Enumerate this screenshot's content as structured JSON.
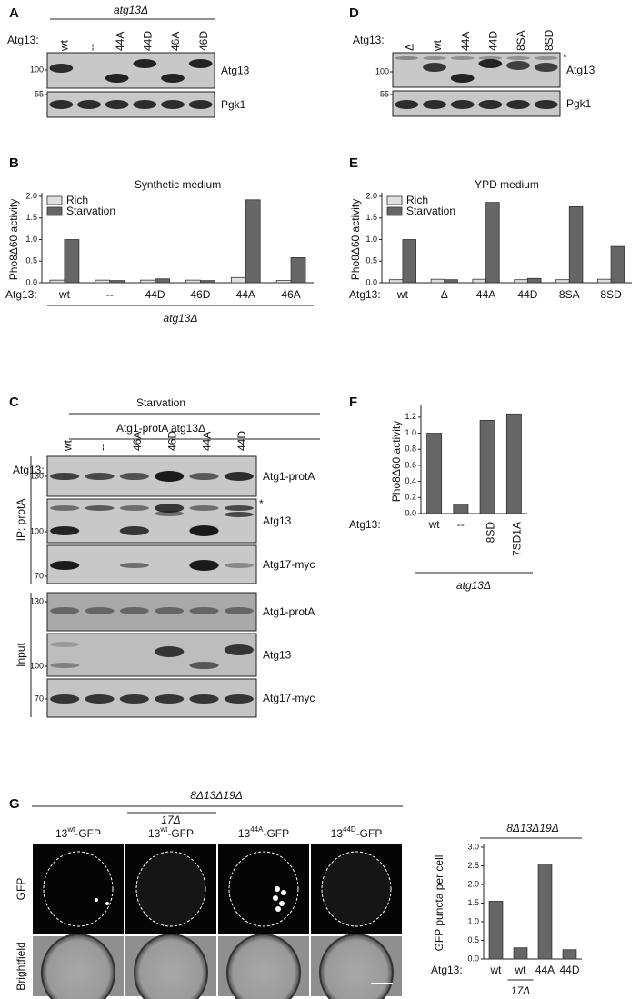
{
  "blot_panels": [
    {
      "label": "A",
      "header": "atg13Δ",
      "row_label": "Atg13:",
      "lanes": [
        "wt",
        "--",
        "44A",
        "44D",
        "46A",
        "46D"
      ],
      "blots": [
        {
          "name": "Atg13",
          "marker": "100"
        },
        {
          "name": "Pgk1",
          "marker": "55"
        }
      ]
    },
    {
      "label": "D",
      "row_label": "Atg13:",
      "lanes": [
        "Δ",
        "wt",
        "44A",
        "44D",
        "8SA",
        "8SD"
      ],
      "blots": [
        {
          "name": "Atg13",
          "marker": "100",
          "asterisk": "*"
        },
        {
          "name": "Pgk1",
          "marker": "55"
        }
      ]
    },
    {
      "label": "C",
      "header": "Starvation",
      "subheader": "Atg1-protA atg13Δ",
      "row_label": "Atg13:",
      "lanes": [
        "wt",
        "--",
        "46A",
        "46D",
        "44A",
        "44D"
      ],
      "groups": [
        {
          "name": "IP: protA",
          "blots": [
            {
              "name": "Atg1-protA",
              "marker": "130"
            },
            {
              "name": "Atg13",
              "marker": "100",
              "asterisk": "*"
            },
            {
              "name": "Atg17-myc",
              "marker": "70"
            }
          ]
        },
        {
          "name": "Input",
          "blots": [
            {
              "name": "Atg1-protA",
              "marker": "130"
            },
            {
              "name": "Atg13",
              "marker": "100"
            },
            {
              "name": "Atg17-myc",
              "marker": "70"
            }
          ]
        }
      ]
    }
  ],
  "microscopy": {
    "label": "G",
    "header": "8Δ13Δ19Δ",
    "subheader": "17Δ",
    "columns": [
      {
        "base": "13",
        "sup": "wt",
        "suffix": "-GFP"
      },
      {
        "base": "13",
        "sup": "wt",
        "suffix": "-GFP"
      },
      {
        "base": "13",
        "sup": "44A",
        "suffix": "-GFP"
      },
      {
        "base": "13",
        "sup": "44D",
        "suffix": "-GFP"
      }
    ],
    "rows": [
      "GFP",
      "Brightfield"
    ]
  },
  "chart_data": [
    {
      "type": "bar",
      "panel": "B",
      "title": "Synthetic medium",
      "y_label": "Pho8Δ60 activity",
      "row_label": "Atg13:",
      "categories": [
        "wt",
        "--",
        "44D",
        "46D",
        "44A",
        "46A"
      ],
      "series": [
        {
          "name": "Rich",
          "color": "#e0e0e0",
          "values": [
            0.06,
            0.06,
            0.06,
            0.06,
            0.12,
            0.05
          ]
        },
        {
          "name": "Starvation",
          "color": "#666666",
          "values": [
            1.0,
            0.05,
            0.09,
            0.05,
            1.92,
            0.58
          ]
        }
      ],
      "ylim": [
        0,
        2
      ],
      "yticks": [
        {
          "value": 0,
          "label": "0.0"
        },
        {
          "value": 0.5,
          "label": "0.5"
        },
        {
          "value": 1,
          "label": "1.0"
        },
        {
          "value": 1.5,
          "label": "1.5"
        },
        {
          "value": 2,
          "label": "2.0"
        }
      ],
      "legend": "upper left",
      "footer": "atg13Δ"
    },
    {
      "type": "bar",
      "panel": "E",
      "title": "YPD medium",
      "y_label": "Pho8Δ60 activity",
      "row_label": "Atg13:",
      "categories": [
        "wt",
        "Δ",
        "44A",
        "44D",
        "8SA",
        "8SD"
      ],
      "series": [
        {
          "name": "Rich",
          "color": "#e0e0e0",
          "values": [
            0.07,
            0.08,
            0.08,
            0.07,
            0.07,
            0.08
          ]
        },
        {
          "name": "Starvation",
          "color": "#666666",
          "values": [
            1.0,
            0.07,
            1.86,
            0.1,
            1.76,
            0.84
          ]
        }
      ],
      "ylim": [
        0,
        2
      ],
      "yticks": [
        {
          "value": 0,
          "label": "0.0"
        },
        {
          "value": 0.5,
          "label": "0.5"
        },
        {
          "value": 1,
          "label": "1.0"
        },
        {
          "value": 1.5,
          "label": "1.5"
        },
        {
          "value": 2,
          "label": "2.0"
        }
      ],
      "legend": "upper left"
    },
    {
      "type": "bar",
      "panel": "F",
      "y_label": "Pho8Δ60 activity",
      "row_label": "Atg13:",
      "categories": [
        "wt",
        "--",
        "8SD",
        "7SD1A"
      ],
      "values": [
        1.0,
        0.12,
        1.16,
        1.24
      ],
      "color": "#666666",
      "ylim": [
        0,
        1.3
      ],
      "yticks": [
        {
          "value": 0,
          "label": "0.0"
        },
        {
          "value": 0.2,
          "label": "0.2"
        },
        {
          "value": 0.4,
          "label": "0.4"
        },
        {
          "value": 0.6,
          "label": "0.6"
        },
        {
          "value": 0.8,
          "label": "0.8"
        },
        {
          "value": 1,
          "label": "1.0"
        },
        {
          "value": 1.2,
          "label": "1.2"
        }
      ],
      "footer": "atg13Δ"
    },
    {
      "type": "bar",
      "title": "8Δ13Δ19Δ",
      "y_label": "GFP puncta per cell",
      "row_label": "Atg13:",
      "categories": [
        "wt",
        "wt",
        "44A",
        "44D"
      ],
      "values": [
        1.55,
        0.3,
        2.55,
        0.25
      ],
      "color": "#666666",
      "ylim": [
        0,
        3
      ],
      "yticks": [
        {
          "value": 0,
          "label": "0.0"
        },
        {
          "value": 0.5,
          "label": "0.5"
        },
        {
          "value": 1,
          "label": "1.0"
        },
        {
          "value": 1.5,
          "label": "1.5"
        },
        {
          "value": 2,
          "label": "2.0"
        },
        {
          "value": 2.5,
          "label": "2.5"
        },
        {
          "value": 3,
          "label": "3.0"
        }
      ],
      "sub_label": "17Δ"
    }
  ]
}
